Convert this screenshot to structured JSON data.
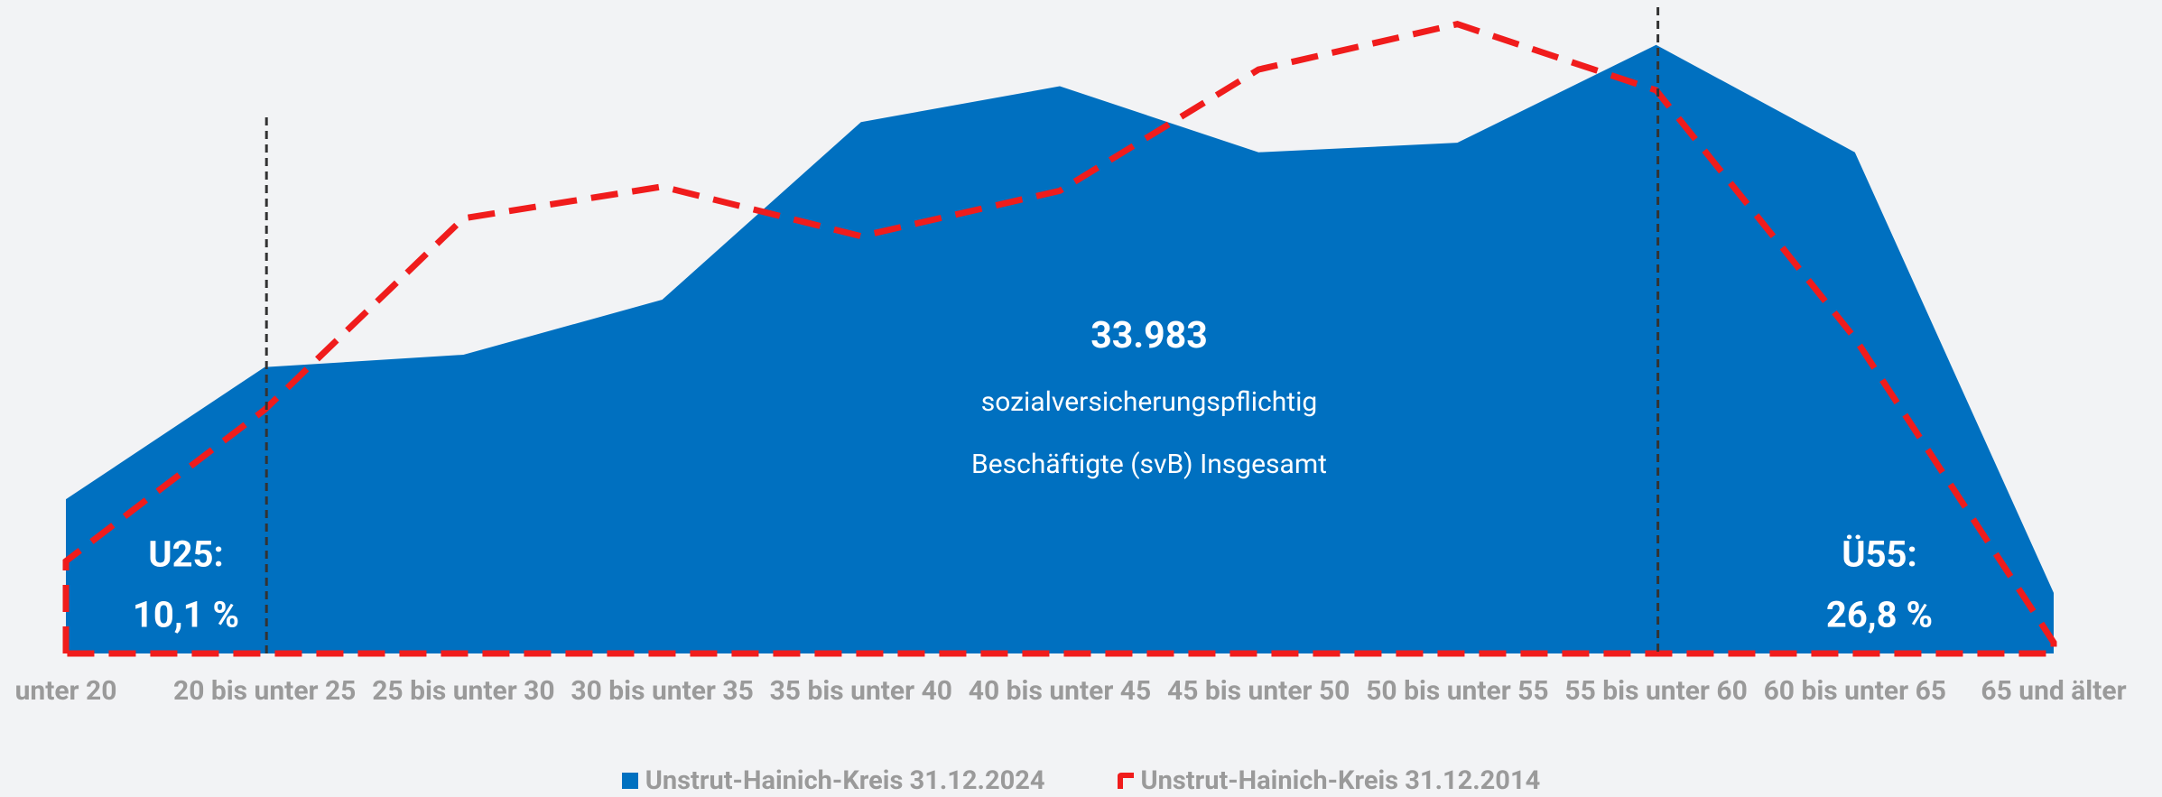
{
  "chart_data": {
    "type": "area",
    "categories": [
      "unter 20",
      "20 bis unter 25",
      "25 bis unter 30",
      "30 bis unter 35",
      "35 bis unter 40",
      "40 bis unter 45",
      "45 bis unter 50",
      "50 bis unter 55",
      "55 bis unter 60",
      "60 bis unter 65",
      "65 und älter"
    ],
    "series": [
      {
        "name": "Unstrut-Hainich-Kreis 31.12.2024",
        "color": "#0070c0",
        "style": "area",
        "values": [
          1198,
          2225,
          2321,
          2749,
          4129,
          4407,
          3894,
          3968,
          4728,
          3894,
          471
        ]
      },
      {
        "name": "Unstrut-Hainich-Kreis 31.12.2014",
        "color": "#f01c1c",
        "style": "dashed",
        "values": [
          717,
          1894,
          3381,
          3627,
          3242,
          3595,
          4537,
          4890,
          4376,
          2450,
          86
        ]
      }
    ],
    "ylim": [
      0,
      5000
    ],
    "center_text": [
      "33.983",
      "sozialversicherungspflichtig",
      "Beschäftigte (svB) Insgesamt"
    ],
    "annotations": [
      {
        "label": "U25:",
        "value_text": "10,1 %"
      },
      {
        "label": "Ü55:",
        "value_text": "26,8 %"
      }
    ]
  }
}
